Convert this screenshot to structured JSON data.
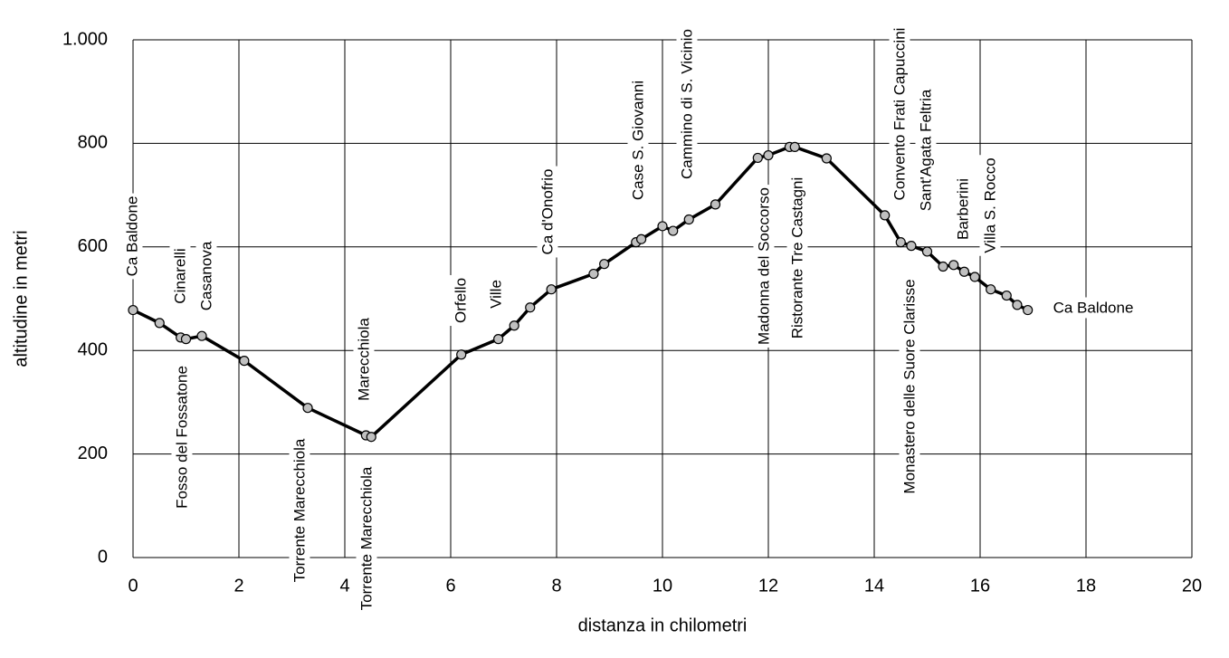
{
  "chart_data": {
    "type": "line",
    "xlabel": "distanza in chilometri",
    "ylabel": "altitudine  in metri",
    "x": [
      0,
      0.5,
      0.9,
      1.0,
      1.3,
      2.1,
      3.3,
      4.4,
      4.5,
      6.2,
      6.9,
      7.2,
      7.5,
      7.9,
      8.7,
      8.9,
      9.5,
      9.6,
      10.0,
      10.2,
      10.5,
      11.0,
      11.8,
      12.0,
      12.4,
      12.5,
      13.1,
      14.2,
      14.5,
      14.7,
      15.0,
      15.3,
      15.5,
      15.7,
      15.9,
      16.2,
      16.5,
      16.7,
      16.9
    ],
    "series": [
      {
        "color": "#000000",
        "marker_color": "#c0c0c0",
        "values": [
          478,
          453,
          425,
          422,
          428,
          380,
          289,
          236,
          233,
          392,
          422,
          448,
          483,
          518,
          548,
          567,
          609,
          615,
          640,
          631,
          653,
          682,
          772,
          777,
          793,
          793,
          771,
          661,
          609,
          602,
          591,
          562,
          565,
          552,
          542,
          518,
          506,
          488,
          478
        ]
      }
    ],
    "xlim": [
      0,
      20
    ],
    "xticks": [
      0,
      2,
      4,
      6,
      8,
      10,
      12,
      14,
      16,
      18,
      20
    ],
    "ylim": [
      0,
      1000
    ],
    "yticks": [
      0,
      200,
      400,
      600,
      800,
      {
        "value": 1000,
        "label": "1.000"
      }
    ],
    "grid": true,
    "annotations": [
      "Ca Baldone",
      "Cinarelli",
      "Casanova",
      "Fosso del Fossatone",
      "Torrente Marecchiola",
      "Marecchiola",
      "Torrente Marecchiola",
      "Orfello",
      "Ville",
      "Ca d'Onofrio",
      "Case S. Giovanni",
      "Cammino di S. Vicinio",
      "Madonna del Soccorso",
      "Ristorante Tre Castagni",
      "Convento Frati Capuccini",
      "Sant'Agata Feltria",
      "Monastero delle Suore Clarisse",
      "Barberini",
      "Villa S. Rocco",
      "Ca Baldone"
    ]
  }
}
